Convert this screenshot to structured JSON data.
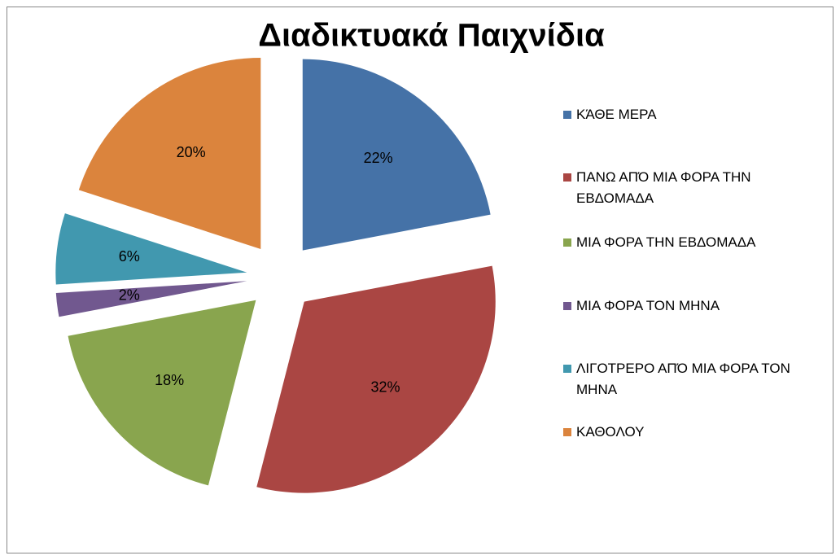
{
  "chart_data": {
    "type": "pie",
    "title": "Διαδικτυακά Παιχνίδια",
    "categories": [
      "ΚΆΘΕ ΜΕΡΑ",
      "ΠΑΝΩ ΑΠΌ ΜΙΑ ΦΟΡΑ ΤΗΝ ΕΒΔΟΜΑΔΑ",
      "ΜΙΑ ΦΟΡΑ ΤΗΝ ΕΒΔΟΜΑΔΑ",
      "ΜΙΑ ΦΟΡΑ ΤΟΝ ΜΗΝΑ",
      "ΛΙΓΟΤΡΕΡΟ ΑΠΌ ΜΙΑ ΦΟΡΑ ΤΟΝ ΜΗΝΑ",
      "ΚΑΘΟΛΟΥ"
    ],
    "values": [
      22,
      32,
      18,
      2,
      6,
      20
    ],
    "value_labels": [
      "22%",
      "32%",
      "18%",
      "2%",
      "6%",
      "20%"
    ],
    "colors": [
      "#4572a7",
      "#aa4643",
      "#89a54e",
      "#71588f",
      "#4198af",
      "#db843d"
    ],
    "legend": "right",
    "exploded": true
  }
}
